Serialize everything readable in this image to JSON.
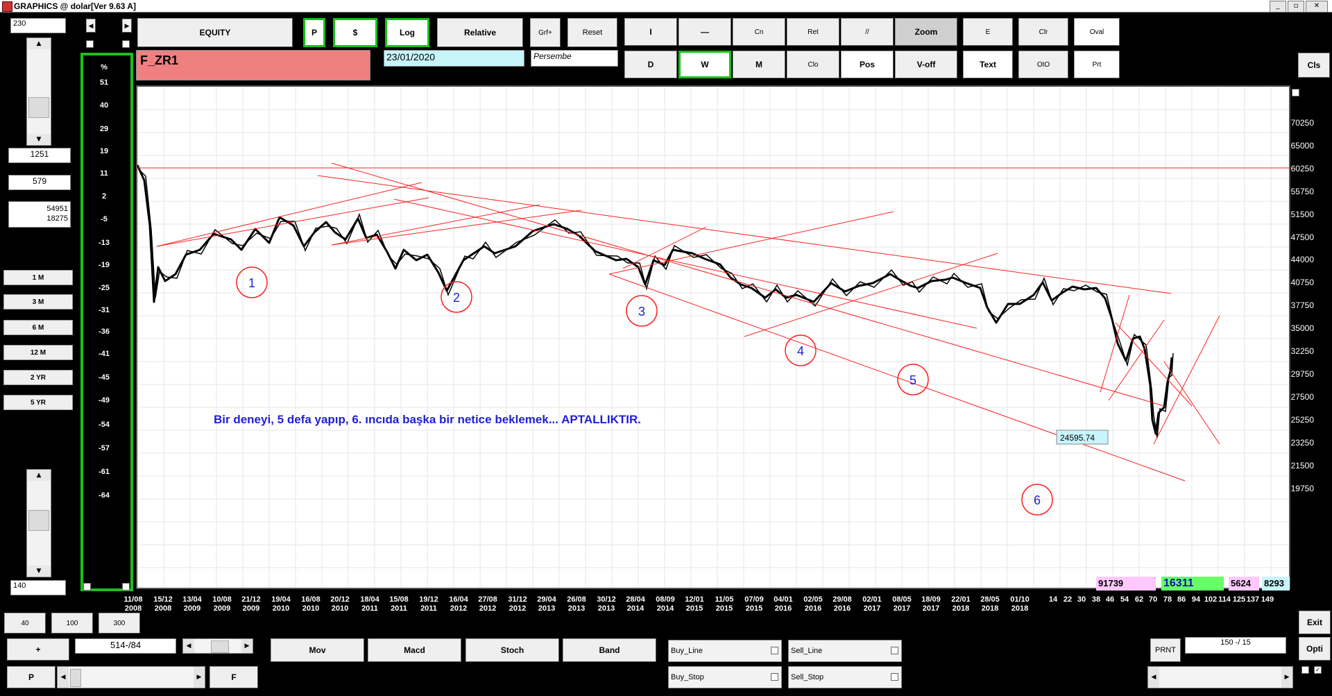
{
  "window": {
    "title": "GRAPHICS  @ dolar[Ver 9.63 A]",
    "minimize": "_",
    "restore": "▫",
    "close": "✕"
  },
  "left_panel": {
    "top_value": "230",
    "value1": "1251",
    "value2": "579",
    "value3a": "54951",
    "value3b": "18275",
    "period_buttons": [
      "1 M",
      "3 M",
      "6 M",
      "12 M",
      "2 YR",
      "5 YR"
    ],
    "bottom_value": "140",
    "zoom_buttons": [
      "40",
      "100",
      "300"
    ],
    "plus_label": "+",
    "range_value": "514-/84",
    "p_label": "P",
    "f_label": "F"
  },
  "toolbar": {
    "equity": "EQUITY",
    "p": "P",
    "dollar": "$",
    "log": "Log",
    "relative": "Relative",
    "grf": "Grf+",
    "reset": "Reset",
    "symbol": "F_ZR1",
    "date": "23/01/2020",
    "day": "Persembe",
    "row1": [
      "I",
      "—",
      "Cn",
      "Ret",
      "//",
      "Zoom",
      "E",
      "Clr",
      "Oval"
    ],
    "row2": [
      "D",
      "W",
      "M",
      "Clo",
      "Pos",
      "V-off",
      "Text",
      "OtO",
      "Prt"
    ],
    "cls": "Cls"
  },
  "chart": {
    "percent_label": "%",
    "percent_ticks": [
      "51",
      "40",
      "29",
      "19",
      "11",
      "2",
      "-5",
      "-13",
      "-19",
      "-25",
      "-31",
      "-36",
      "-41",
      "-45",
      "-49",
      "-54",
      "-57",
      "-61",
      "-64"
    ],
    "price_ticks": [
      "70250",
      "65000",
      "60250",
      "55750",
      "51500",
      "47500",
      "44000",
      "40750",
      "37750",
      "35000",
      "32250",
      "29750",
      "27500",
      "25250",
      "23250",
      "21500",
      "19750"
    ],
    "date_ticks": [
      [
        "11/08",
        "2008"
      ],
      [
        "15/12",
        "2008"
      ],
      [
        "13/04",
        "2009"
      ],
      [
        "10/08",
        "2009"
      ],
      [
        "21/12",
        "2009"
      ],
      [
        "19/04",
        "2010"
      ],
      [
        "16/08",
        "2010"
      ],
      [
        "20/12",
        "2010"
      ],
      [
        "18/04",
        "2011"
      ],
      [
        "15/08",
        "2011"
      ],
      [
        "19/12",
        "2011"
      ],
      [
        "16/04",
        "2012"
      ],
      [
        "27/08",
        "2012"
      ],
      [
        "31/12",
        "2012"
      ],
      [
        "29/04",
        "2013"
      ],
      [
        "26/08",
        "2013"
      ],
      [
        "30/12",
        "2013"
      ],
      [
        "28/04",
        "2014"
      ],
      [
        "08/09",
        "2014"
      ],
      [
        "12/01",
        "2015"
      ],
      [
        "11/05",
        "2015"
      ],
      [
        "07/09",
        "2015"
      ],
      [
        "04/01",
        "2016"
      ],
      [
        "02/05",
        "2016"
      ],
      [
        "29/08",
        "2016"
      ],
      [
        "02/01",
        "2017"
      ],
      [
        "08/05",
        "2017"
      ],
      [
        "18/09",
        "2017"
      ],
      [
        "22/01",
        "2018"
      ],
      [
        "28/05",
        "2018"
      ],
      [
        "01/10",
        "2018"
      ]
    ],
    "future_ticks": [
      "14",
      "22",
      "30",
      "38",
      "46",
      "54",
      "62",
      "70",
      "78",
      "86",
      "94",
      "102",
      "114",
      "125",
      "137",
      "149"
    ],
    "annotation": "Bir deneyi, 5 defa yapıp, 6. ıncıda başka bir netice beklemek...  APTALLIKTIR.",
    "circle_labels": [
      "1",
      "2",
      "3",
      "4",
      "5",
      "6"
    ],
    "price_label": "24595.74",
    "colors": {
      "line": "#ff2020",
      "price": "#000000",
      "circle_text": "#1f1fd6",
      "annotation": "#1f1fd6",
      "plot_bg": "#ffffff",
      "grid": "#e6e6e6"
    }
  },
  "stats": {
    "s1": "91739",
    "s2": "16311",
    "s3": "5624",
    "s4": "8293"
  },
  "bottom": {
    "mov": "Mov",
    "macd": "Macd",
    "stoch": "Stoch",
    "band": "Band",
    "buy_line": "Buy_Line",
    "sell_line": "Sell_Line",
    "buy_stop": "Buy_Stop",
    "sell_stop": "Sell_Stop",
    "prnt": "PRNT",
    "ratio": "150 -/ 15",
    "exit": "Exit",
    "opti": "Opti"
  }
}
